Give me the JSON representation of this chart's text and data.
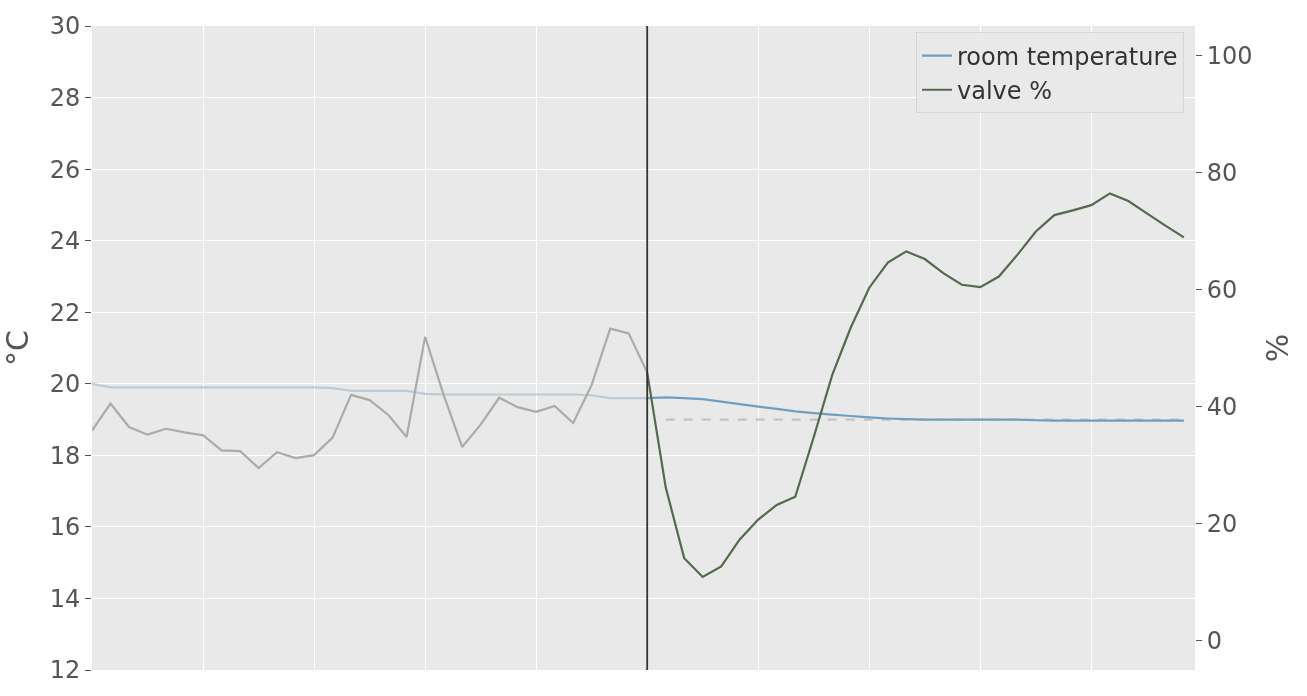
{
  "chart_data": {
    "type": "line",
    "ylabel": "°C",
    "y2label": "%",
    "categories": [
      null,
      null,
      null,
      null,
      null,
      null,
      null,
      null,
      null,
      null,
      null,
      null,
      null,
      null,
      null,
      null,
      null,
      null,
      null,
      null,
      null,
      null,
      null,
      null,
      null,
      null,
      null,
      null,
      null,
      null,
      null,
      null,
      null,
      null,
      null,
      null,
      null,
      null,
      null,
      null,
      null,
      null,
      null,
      null,
      null,
      null,
      null,
      null,
      null,
      null,
      null,
      null,
      null,
      null,
      null,
      null,
      null,
      null,
      null,
      null
    ],
    "ylim": [
      12,
      30
    ],
    "yticks": [
      12,
      14,
      16,
      18,
      20,
      22,
      24,
      26,
      28,
      30
    ],
    "y2lim": [
      -5,
      105
    ],
    "y2ticks": [
      0,
      20,
      40,
      60,
      80,
      100
    ],
    "tick_labels": "y",
    "grid": true,
    "legend": "top right",
    "line_style": "solid",
    "series": [
      {
        "color": "#bccbd6",
        "values": [
          20.0,
          19.9,
          19.9,
          19.9,
          19.9,
          19.9,
          19.9,
          19.9,
          19.9,
          19.9,
          19.9,
          19.9,
          19.9,
          19.88,
          19.8,
          19.8,
          19.8,
          19.8,
          19.72,
          19.7,
          19.7,
          19.7,
          19.7,
          19.7,
          19.7,
          19.7,
          19.7,
          19.68,
          19.6,
          19.6,
          19.6,
          null,
          null,
          null,
          null,
          null,
          null,
          null,
          null,
          null,
          null,
          null,
          null,
          null,
          null,
          null,
          null,
          null,
          null,
          null,
          null,
          null,
          null,
          null,
          null,
          null,
          null,
          null,
          null,
          null
        ]
      },
      {
        "color": "#a9ada5",
        "axis": "y2",
        "values": [
          35.9,
          40.5,
          36.5,
          35.2,
          36.2,
          35.6,
          35.1,
          32.5,
          32.4,
          29.5,
          32.2,
          31.2,
          31.7,
          34.7,
          42.0,
          41.1,
          38.6,
          34.8,
          51.9,
          42.0,
          33.1,
          36.9,
          41.5,
          39.9,
          39.1,
          40.1,
          37.2,
          43.7,
          53.3,
          52.5,
          45.8,
          null,
          null,
          null,
          null,
          null,
          null,
          null,
          null,
          null,
          null,
          null,
          null,
          null,
          null,
          null,
          null,
          null,
          null,
          null,
          null,
          null,
          null,
          null,
          null,
          null,
          null,
          null,
          null,
          null
        ]
      },
      {
        "color": "#c4c4c4",
        "line_style": "dashed",
        "values": [
          null,
          null,
          null,
          null,
          null,
          null,
          null,
          null,
          null,
          null,
          null,
          null,
          null,
          null,
          null,
          null,
          null,
          null,
          null,
          null,
          null,
          null,
          null,
          null,
          null,
          null,
          null,
          null,
          null,
          null,
          null,
          19,
          19,
          19,
          19,
          19,
          19,
          19,
          19,
          19,
          19,
          19,
          19,
          19,
          19,
          19,
          19,
          19,
          19,
          19,
          19,
          19,
          19,
          19,
          19,
          19,
          19,
          19,
          19,
          19
        ]
      },
      {
        "name": "room temperature",
        "color": "#6f9fbf",
        "values": [
          null,
          null,
          null,
          null,
          null,
          null,
          null,
          null,
          null,
          null,
          null,
          null,
          null,
          null,
          null,
          null,
          null,
          null,
          null,
          null,
          null,
          null,
          null,
          null,
          null,
          null,
          null,
          null,
          null,
          null,
          19.6,
          19.62,
          19.6,
          19.57,
          19.5,
          19.43,
          19.36,
          19.3,
          19.23,
          19.18,
          19.14,
          19.1,
          19.06,
          19.03,
          19.01,
          19.0,
          19.0,
          19.0,
          19.0,
          19.0,
          19.0,
          18.98,
          18.97,
          18.97,
          18.97,
          18.97,
          18.97,
          18.97,
          18.97,
          18.97
        ]
      },
      {
        "name": "valve %",
        "color": "#536a4d",
        "axis": "y2",
        "values": [
          null,
          null,
          null,
          null,
          null,
          null,
          null,
          null,
          null,
          null,
          null,
          null,
          null,
          null,
          null,
          null,
          null,
          null,
          null,
          null,
          null,
          null,
          null,
          null,
          null,
          null,
          null,
          null,
          null,
          null,
          45.8,
          26.2,
          14.1,
          10.9,
          12.7,
          17.3,
          20.7,
          23.2,
          24.6,
          34.8,
          45.4,
          53.5,
          60.3,
          64.6,
          66.5,
          65.2,
          62.8,
          60.8,
          60.4,
          62.2,
          65.9,
          69.9,
          72.7,
          73.5,
          74.4,
          76.4,
          75.1,
          73.0,
          70.9,
          68.9
        ]
      }
    ]
  }
}
